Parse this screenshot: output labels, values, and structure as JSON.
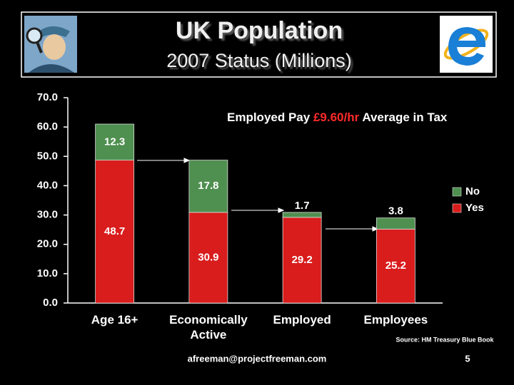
{
  "chart_data": {
    "type": "stacked_bar",
    "title": "UK Population",
    "subtitle": "2007 Status (Millions)",
    "annotation": {
      "before": "Employed Pay",
      "highlight": "£9.60/hr",
      "after": "Average in Tax"
    },
    "source": "Source: HM Treasury Blue Book",
    "footer": "afreeman@projectfreeman.com",
    "page_number": "5",
    "categories": [
      "Age 16+",
      "Economically Active",
      "Employed",
      "Employees"
    ],
    "series": [
      {
        "name": "Yes",
        "color": "#d91c1c",
        "values": [
          48.7,
          30.9,
          29.2,
          25.2
        ]
      },
      {
        "name": "No",
        "color": "#4f8f4f",
        "values": [
          12.3,
          17.8,
          1.7,
          3.8
        ]
      }
    ],
    "ylim": [
      0,
      70
    ],
    "yticks": [
      {
        "value": 0,
        "label": "0.0"
      },
      {
        "value": 10,
        "label": "10.0"
      },
      {
        "value": 20,
        "label": "20.0"
      },
      {
        "value": 30,
        "label": "30.0"
      },
      {
        "value": 40,
        "label": "40.0"
      },
      {
        "value": 50,
        "label": "50.0"
      },
      {
        "value": 60,
        "label": "60.0"
      },
      {
        "value": 70,
        "label": "70.0"
      }
    ],
    "grid": false,
    "legend": "right"
  }
}
